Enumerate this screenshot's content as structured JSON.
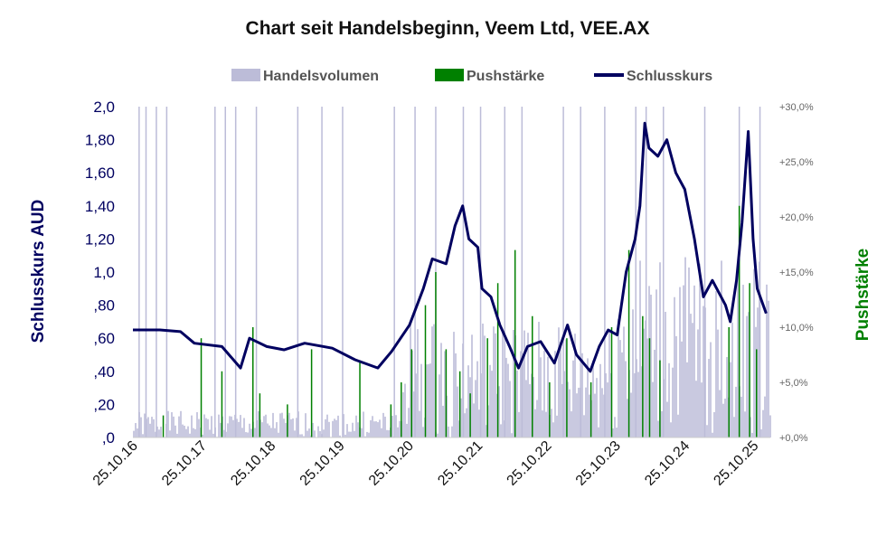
{
  "chart_data": {
    "type": "line",
    "title": "Chart seit Handelsbeginn, Veem Ltd, VEE.AX",
    "legend": [
      "Handelsvolumen",
      "Pushstärke",
      "Schlusskurs"
    ],
    "legend_position": "top",
    "ylabel": "Schlusskurs AUD",
    "y2label": "Pushstärke",
    "ylim": [
      0,
      2.0
    ],
    "y2lim": [
      0,
      30
    ],
    "yticks": [
      ",0",
      ",20",
      ",40",
      ",60",
      ",80",
      "1,0",
      "1,20",
      "1,40",
      "1,60",
      "1,80",
      "2,0"
    ],
    "y2ticks": [
      "+0,0%",
      "+5,0%",
      "+10,0%",
      "+15,0%",
      "+20,0%",
      "+25,0%",
      "+30,0%"
    ],
    "xticks": [
      "25.10.16",
      "25.10.17",
      "25.10.18",
      "25.10.19",
      "25.10.20",
      "25.10.21",
      "25.10.22",
      "25.10.23",
      "25.10.24",
      "25.10.25"
    ],
    "xrange": [
      2016.81,
      2026.05
    ],
    "colors": {
      "volume": "#bcbcd8",
      "push": "#008000",
      "close": "#000060"
    },
    "close": [
      [
        2016.81,
        0.65
      ],
      [
        2017.2,
        0.65
      ],
      [
        2017.5,
        0.64
      ],
      [
        2017.7,
        0.57
      ],
      [
        2018.1,
        0.55
      ],
      [
        2018.37,
        0.42
      ],
      [
        2018.5,
        0.6
      ],
      [
        2018.75,
        0.55
      ],
      [
        2019.0,
        0.53
      ],
      [
        2019.3,
        0.57
      ],
      [
        2019.7,
        0.54
      ],
      [
        2020.03,
        0.47
      ],
      [
        2020.36,
        0.42
      ],
      [
        2020.56,
        0.52
      ],
      [
        2020.82,
        0.68
      ],
      [
        2021.02,
        0.9
      ],
      [
        2021.15,
        1.08
      ],
      [
        2021.35,
        1.05
      ],
      [
        2021.48,
        1.28
      ],
      [
        2021.59,
        1.4
      ],
      [
        2021.68,
        1.2
      ],
      [
        2021.81,
        1.15
      ],
      [
        2021.87,
        0.9
      ],
      [
        2022.0,
        0.85
      ],
      [
        2022.13,
        0.68
      ],
      [
        2022.27,
        0.55
      ],
      [
        2022.4,
        0.42
      ],
      [
        2022.53,
        0.55
      ],
      [
        2022.72,
        0.58
      ],
      [
        2022.92,
        0.45
      ],
      [
        2023.11,
        0.68
      ],
      [
        2023.24,
        0.5
      ],
      [
        2023.44,
        0.4
      ],
      [
        2023.57,
        0.55
      ],
      [
        2023.7,
        0.65
      ],
      [
        2023.83,
        0.62
      ],
      [
        2023.96,
        1.0
      ],
      [
        2024.09,
        1.2
      ],
      [
        2024.16,
        1.4
      ],
      [
        2024.23,
        1.9
      ],
      [
        2024.29,
        1.75
      ],
      [
        2024.42,
        1.7
      ],
      [
        2024.55,
        1.8
      ],
      [
        2024.68,
        1.6
      ],
      [
        2024.81,
        1.5
      ],
      [
        2024.95,
        1.2
      ],
      [
        2025.08,
        0.85
      ],
      [
        2025.21,
        0.95
      ],
      [
        2025.4,
        0.8
      ],
      [
        2025.47,
        0.7
      ],
      [
        2025.56,
        0.95
      ],
      [
        2025.64,
        1.3
      ],
      [
        2025.73,
        1.85
      ],
      [
        2025.8,
        1.2
      ],
      [
        2025.86,
        0.9
      ],
      [
        2025.99,
        0.75
      ]
    ],
    "push": [
      [
        2017.25,
        2
      ],
      [
        2017.8,
        9
      ],
      [
        2018.1,
        6
      ],
      [
        2018.55,
        10
      ],
      [
        2018.65,
        4
      ],
      [
        2019.05,
        3
      ],
      [
        2019.4,
        8
      ],
      [
        2020.1,
        7
      ],
      [
        2020.55,
        3
      ],
      [
        2020.7,
        5
      ],
      [
        2020.85,
        8
      ],
      [
        2021.05,
        12
      ],
      [
        2021.2,
        15
      ],
      [
        2021.35,
        8
      ],
      [
        2021.55,
        6
      ],
      [
        2021.7,
        4
      ],
      [
        2021.95,
        9
      ],
      [
        2022.1,
        14
      ],
      [
        2022.35,
        17
      ],
      [
        2022.6,
        11
      ],
      [
        2022.85,
        5
      ],
      [
        2023.1,
        9
      ],
      [
        2023.45,
        5
      ],
      [
        2023.75,
        10
      ],
      [
        2024.0,
        17
      ],
      [
        2024.2,
        11
      ],
      [
        2024.3,
        9
      ],
      [
        2024.45,
        7
      ],
      [
        2025.45,
        10
      ],
      [
        2025.6,
        21
      ],
      [
        2025.75,
        14
      ],
      [
        2025.85,
        8
      ]
    ],
    "volume_spikes": [
      2016.9,
      2017.0,
      2017.15,
      2017.3,
      2018.0,
      2018.15,
      2018.3,
      2018.6,
      2019.2,
      2019.55,
      2019.85,
      2020.6,
      2020.9,
      2021.2,
      2021.6,
      2021.85,
      2022.2,
      2022.45,
      2023.05,
      2023.3,
      2023.65,
      2024.1,
      2024.25,
      2024.5,
      2025.1,
      2025.6,
      2025.9
    ]
  }
}
